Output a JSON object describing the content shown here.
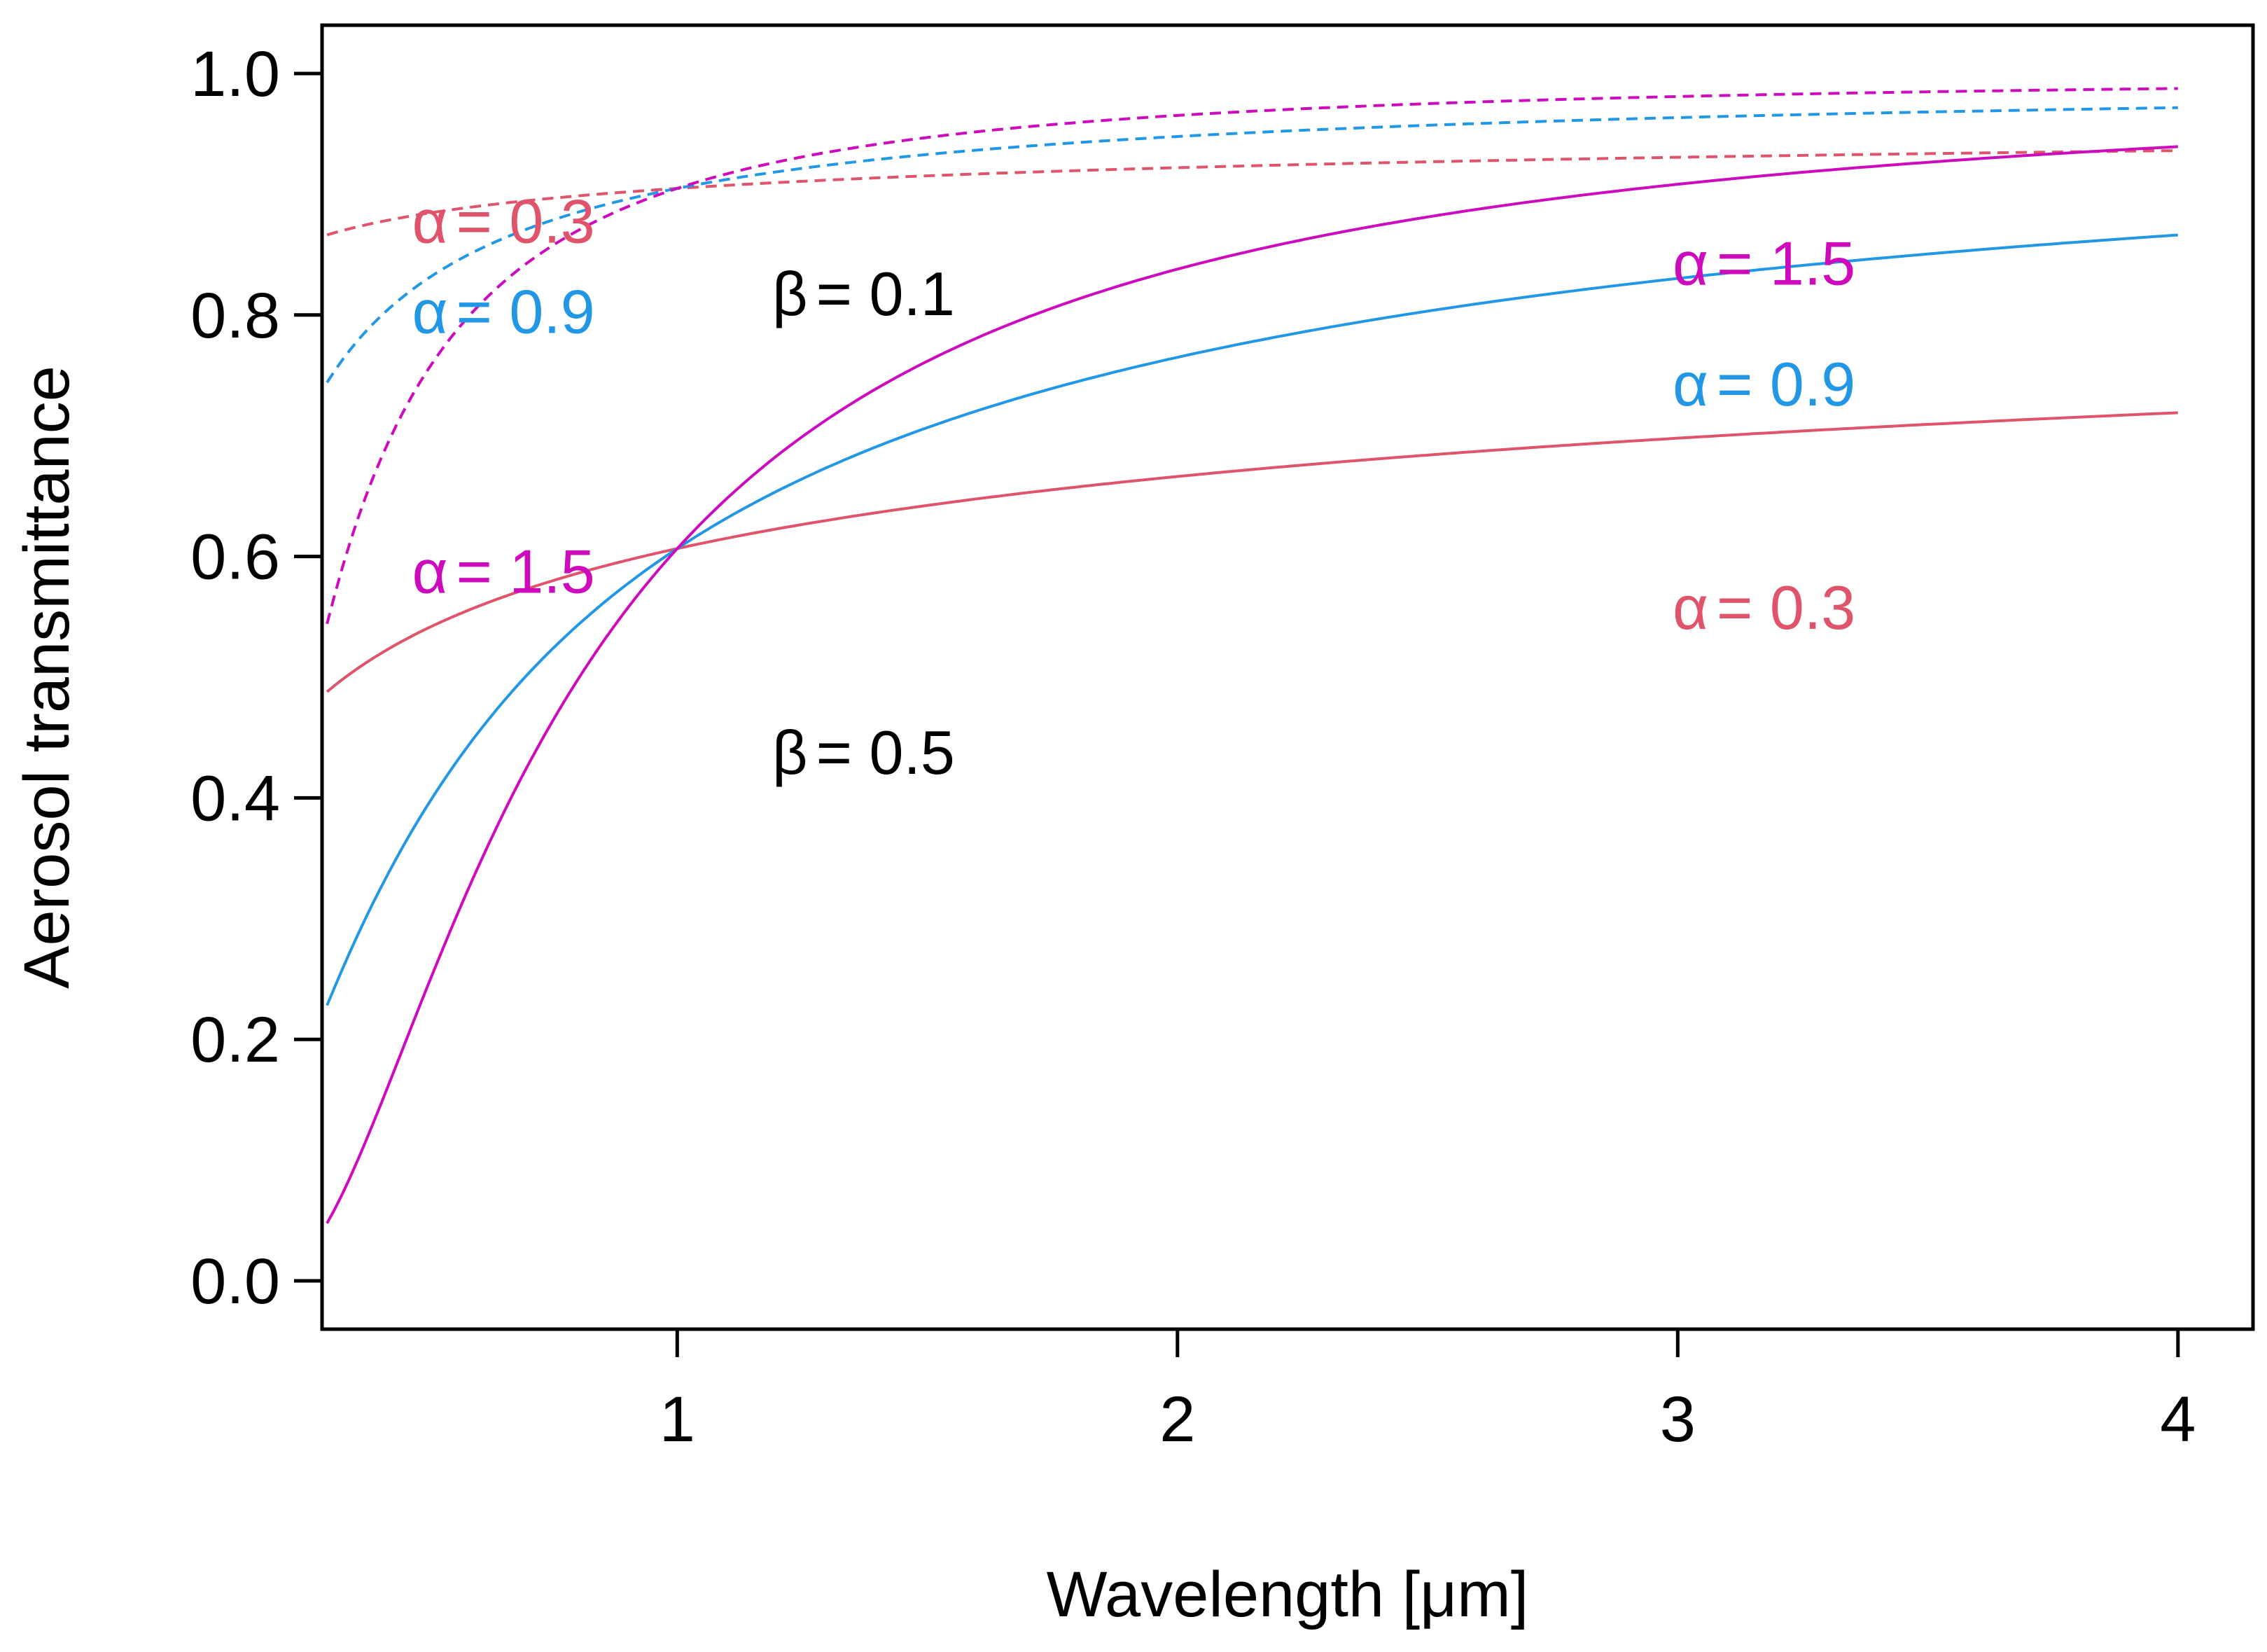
{
  "chart_data": {
    "type": "line",
    "xlabel": "Wavelength [μm]",
    "ylabel": "Aerosol transmittance",
    "xlim": [
      0.29,
      4.15
    ],
    "ylim": [
      -0.04,
      1.04
    ],
    "x_ticks": [
      1,
      2,
      3,
      4
    ],
    "x_tick_labels": [
      "1",
      "2",
      "3",
      "4"
    ],
    "y_ticks": [
      0.0,
      0.2,
      0.4,
      0.6,
      0.8,
      1.0
    ],
    "y_tick_labels": [
      "0.0",
      "0.2",
      "0.4",
      "0.6",
      "0.8",
      "1.0"
    ],
    "grid": false,
    "legend": "none",
    "colors": {
      "alpha_0_3": "#df536b",
      "alpha_0_9": "#2297e6",
      "alpha_1_5": "#cd0bbc",
      "text": "#000000"
    },
    "x_range": [
      0.3,
      4.0
    ],
    "series": [
      {
        "alpha": 0.3,
        "beta": 0.1,
        "style": "dashed",
        "color": "#df536b"
      },
      {
        "alpha": 0.9,
        "beta": 0.1,
        "style": "dashed",
        "color": "#2297e6"
      },
      {
        "alpha": 1.5,
        "beta": 0.1,
        "style": "dashed",
        "color": "#cd0bbc"
      },
      {
        "alpha": 0.3,
        "beta": 0.5,
        "style": "solid",
        "color": "#df536b"
      },
      {
        "alpha": 0.9,
        "beta": 0.5,
        "style": "solid",
        "color": "#2297e6"
      },
      {
        "alpha": 1.5,
        "beta": 0.5,
        "style": "solid",
        "color": "#cd0bbc"
      }
    ],
    "annotations": [
      {
        "symbol": "α",
        "text": "= 0.3",
        "color": "#df536b",
        "x": 0.47,
        "y": 0.86
      },
      {
        "symbol": "α",
        "text": "= 0.9",
        "color": "#2297e6",
        "x": 0.47,
        "y": 0.785
      },
      {
        "symbol": "α",
        "text": "= 1.5",
        "color": "#cd0bbc",
        "x": 0.47,
        "y": 0.57
      },
      {
        "symbol": "β",
        "text": "= 0.1",
        "color": "#000000",
        "x": 1.19,
        "y": 0.8
      },
      {
        "symbol": "β",
        "text": "= 0.5",
        "color": "#000000",
        "x": 1.19,
        "y": 0.42
      },
      {
        "symbol": "α",
        "text": "= 1.5",
        "color": "#cd0bbc",
        "x": 2.99,
        "y": 0.825
      },
      {
        "symbol": "α",
        "text": "= 0.9",
        "color": "#2297e6",
        "x": 2.99,
        "y": 0.725
      },
      {
        "symbol": "α",
        "text": "= 0.3",
        "color": "#df536b",
        "x": 2.99,
        "y": 0.54
      }
    ]
  }
}
